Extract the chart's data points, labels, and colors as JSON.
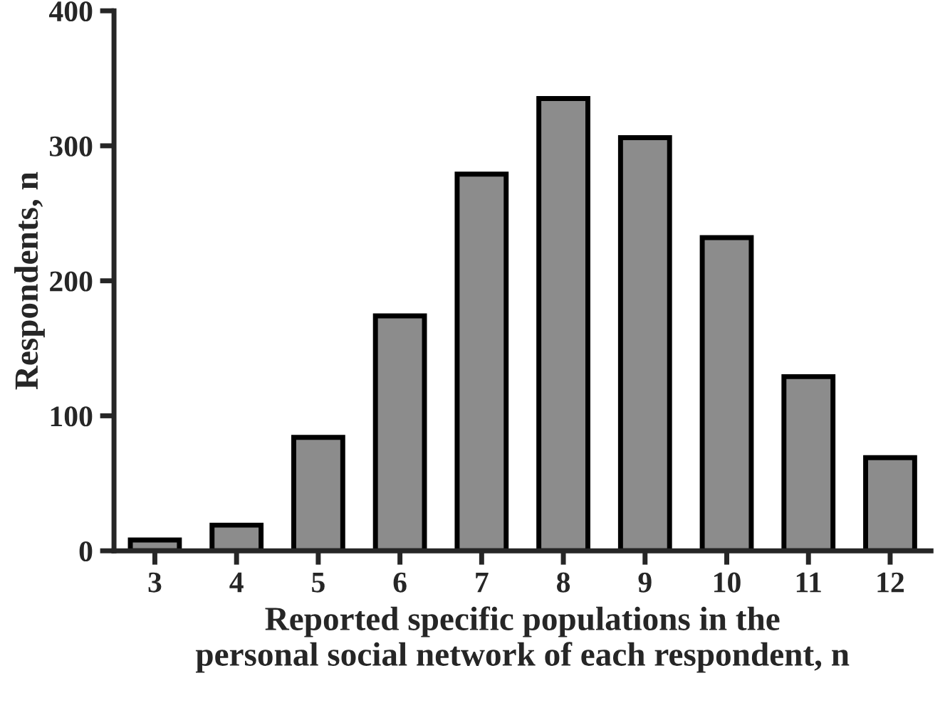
{
  "chart_data": {
    "type": "bar",
    "xlabel": "Reported specific populations in the\npersonal social network of each respondent, n",
    "ylabel": "Respondents, n",
    "categories": [
      "3",
      "4",
      "5",
      "6",
      "7",
      "8",
      "9",
      "10",
      "11",
      "12"
    ],
    "values": [
      8,
      19,
      84,
      174,
      279,
      335,
      306,
      232,
      129,
      69
    ],
    "color": "#8c8c8c",
    "ylim": [
      0,
      400
    ],
    "yticks": [
      0,
      100,
      200,
      300,
      400
    ],
    "grid": false,
    "legend": false
  }
}
